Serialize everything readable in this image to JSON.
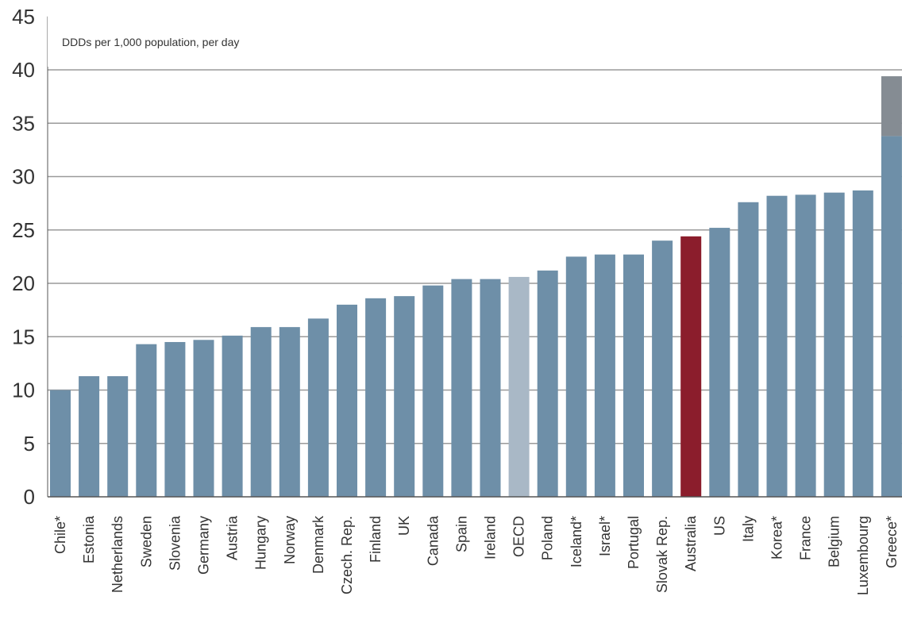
{
  "chart_data": {
    "type": "bar",
    "title": "",
    "subtitle": "DDDs per 1,000 population, per day",
    "xlabel": "",
    "ylabel": "",
    "ylim": [
      0,
      45
    ],
    "yticks": [
      0,
      5,
      10,
      15,
      20,
      25,
      30,
      35,
      40,
      45
    ],
    "grid": true,
    "legend": "none",
    "categories": [
      "Chile*",
      "Estonia",
      "Netherlands",
      "Sweden",
      "Slovenia",
      "Germany",
      "Austria",
      "Hungary",
      "Norway",
      "Denmark",
      "Czech. Rep.",
      "Finland",
      "UK",
      "Canada",
      "Spain",
      "Ireland",
      "OECD",
      "Poland",
      "Iceland*",
      "Israel*",
      "Portugal",
      "Slovak Rep.",
      "Australia",
      "US",
      "Italy",
      "Korea*",
      "France",
      "Belgium",
      "Luxembourg",
      "Greece*"
    ],
    "values": [
      10.0,
      11.3,
      11.3,
      14.3,
      14.5,
      14.7,
      15.1,
      15.9,
      15.9,
      16.7,
      18.0,
      18.6,
      18.8,
      19.8,
      20.4,
      20.4,
      20.6,
      21.2,
      22.5,
      22.7,
      22.7,
      24.0,
      24.4,
      25.2,
      27.6,
      28.2,
      28.3,
      28.5,
      28.7,
      39.4
    ],
    "bar_colors": [
      "#6e8fa8",
      "#6e8fa8",
      "#6e8fa8",
      "#6e8fa8",
      "#6e8fa8",
      "#6e8fa8",
      "#6e8fa8",
      "#6e8fa8",
      "#6e8fa8",
      "#6e8fa8",
      "#6e8fa8",
      "#6e8fa8",
      "#6e8fa8",
      "#6e8fa8",
      "#6e8fa8",
      "#6e8fa8",
      "#a9b8c6",
      "#6e8fa8",
      "#6e8fa8",
      "#6e8fa8",
      "#6e8fa8",
      "#6e8fa8",
      "#8b1d2c",
      "#6e8fa8",
      "#6e8fa8",
      "#6e8fa8",
      "#6e8fa8",
      "#6e8fa8",
      "#6e8fa8",
      "#6e8fa8"
    ],
    "greece_segments": [
      {
        "value": 33.8,
        "color": "#6e8fa8"
      },
      {
        "value": 5.6,
        "color": "#858c93"
      }
    ],
    "colors": {
      "bar": "#6e8fa8",
      "oecd": "#a9b8c6",
      "australia": "#8b1d2c",
      "greece_top": "#858c93",
      "grid": "#9a9a9a",
      "axis": "#555555"
    }
  }
}
